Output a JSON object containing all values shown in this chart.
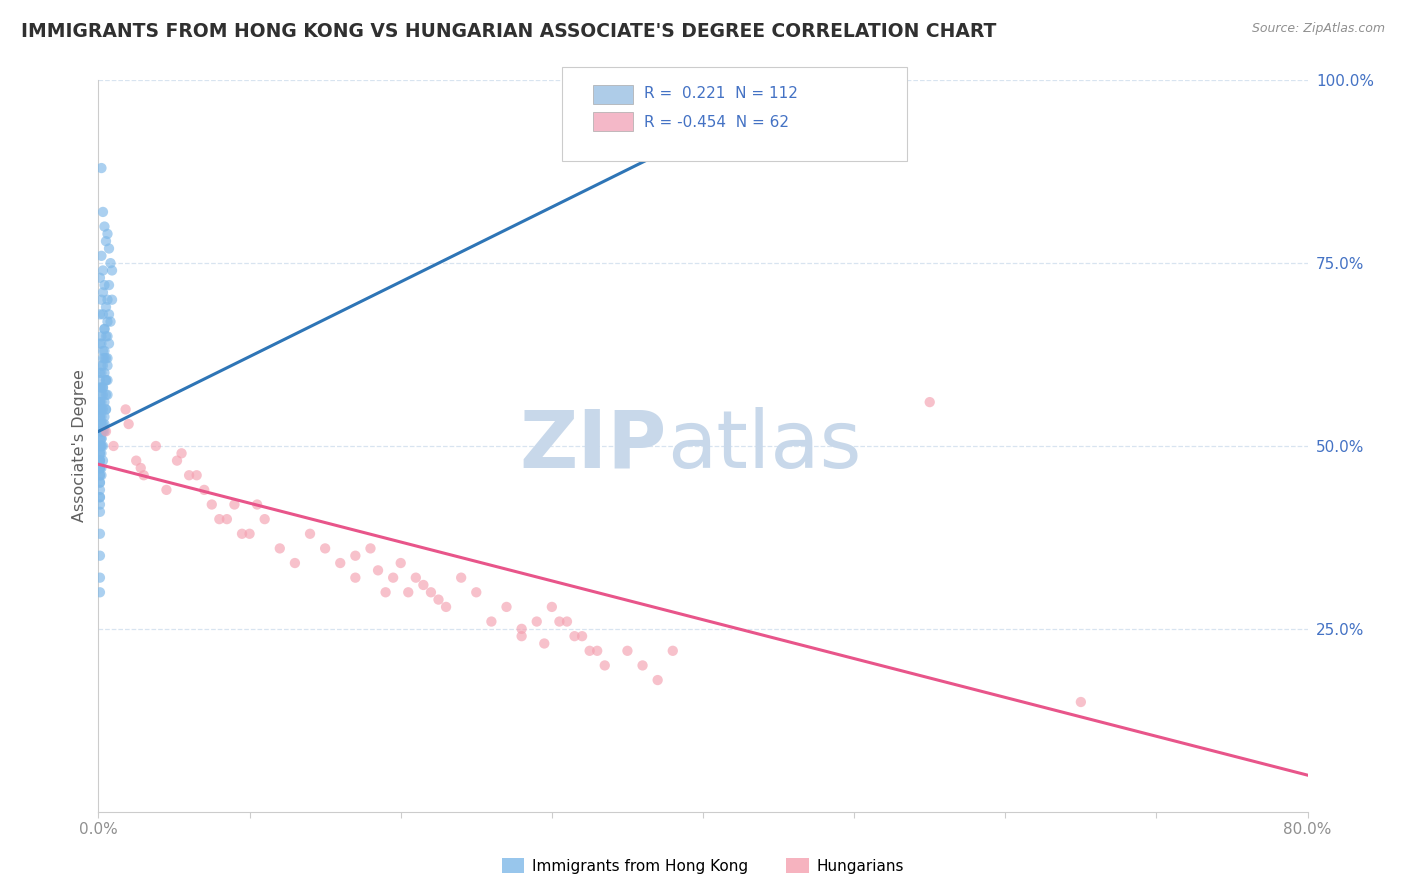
{
  "title": "IMMIGRANTS FROM HONG KONG VS HUNGARIAN ASSOCIATE'S DEGREE CORRELATION CHART",
  "source": "Source: ZipAtlas.com",
  "ylabel_label": "Associate's Degree",
  "xlim": [
    0.0,
    0.8
  ],
  "ylim": [
    0.0,
    1.0
  ],
  "series_hk": {
    "color": "#7eb8e8",
    "alpha": 0.65,
    "size": 55,
    "trend_color": "#2e75b6",
    "trend_lw": 2.2
  },
  "series_hu": {
    "color": "#f4a0b0",
    "alpha": 0.65,
    "size": 55,
    "trend_color": "#e8558a",
    "trend_lw": 2.2
  },
  "legend_hk_color": "#aecce8",
  "legend_hu_color": "#f4b8c8",
  "watermark_zip": "ZIP",
  "watermark_atlas": "atlas",
  "watermark_color_zip": "#c8d8ea",
  "watermark_color_atlas": "#c8d8ea",
  "background_color": "#ffffff",
  "title_color": "#303030",
  "title_fontsize": 13.5,
  "source_color": "#909090",
  "axis_label_color": "#606060",
  "tick_color": "#909090",
  "ytick_color": "#4472c4",
  "grid_color": "#d8e4f0",
  "grid_linestyle": "--",
  "hk_x": [
    0.002,
    0.004,
    0.003,
    0.005,
    0.002,
    0.006,
    0.003,
    0.007,
    0.004,
    0.008,
    0.001,
    0.003,
    0.002,
    0.005,
    0.003,
    0.007,
    0.004,
    0.006,
    0.002,
    0.009,
    0.001,
    0.004,
    0.002,
    0.006,
    0.003,
    0.005,
    0.004,
    0.007,
    0.002,
    0.009,
    0.001,
    0.003,
    0.002,
    0.004,
    0.001,
    0.005,
    0.003,
    0.006,
    0.002,
    0.008,
    0.001,
    0.003,
    0.002,
    0.004,
    0.001,
    0.005,
    0.003,
    0.006,
    0.002,
    0.007,
    0.001,
    0.002,
    0.001,
    0.003,
    0.002,
    0.004,
    0.001,
    0.005,
    0.002,
    0.006,
    0.001,
    0.002,
    0.001,
    0.003,
    0.001,
    0.004,
    0.002,
    0.005,
    0.001,
    0.006,
    0.001,
    0.002,
    0.001,
    0.003,
    0.001,
    0.004,
    0.002,
    0.005,
    0.001,
    0.006,
    0.001,
    0.002,
    0.001,
    0.002,
    0.001,
    0.003,
    0.001,
    0.004,
    0.002,
    0.005,
    0.001,
    0.001,
    0.001,
    0.002,
    0.001,
    0.003,
    0.001,
    0.002,
    0.001,
    0.003,
    0.001,
    0.001,
    0.001,
    0.002,
    0.001,
    0.001,
    0.001,
    0.001,
    0.001,
    0.001,
    0.001,
    0.001
  ],
  "hk_y": [
    0.88,
    0.8,
    0.82,
    0.78,
    0.76,
    0.79,
    0.74,
    0.77,
    0.72,
    0.75,
    0.73,
    0.71,
    0.7,
    0.69,
    0.68,
    0.72,
    0.66,
    0.7,
    0.65,
    0.74,
    0.68,
    0.66,
    0.64,
    0.67,
    0.63,
    0.65,
    0.62,
    0.68,
    0.61,
    0.7,
    0.64,
    0.62,
    0.6,
    0.63,
    0.59,
    0.62,
    0.61,
    0.65,
    0.58,
    0.67,
    0.6,
    0.58,
    0.57,
    0.6,
    0.56,
    0.59,
    0.58,
    0.62,
    0.55,
    0.64,
    0.58,
    0.56,
    0.54,
    0.57,
    0.53,
    0.56,
    0.55,
    0.59,
    0.52,
    0.61,
    0.56,
    0.54,
    0.52,
    0.55,
    0.51,
    0.54,
    0.53,
    0.57,
    0.5,
    0.59,
    0.55,
    0.52,
    0.5,
    0.53,
    0.49,
    0.52,
    0.51,
    0.55,
    0.48,
    0.57,
    0.54,
    0.5,
    0.48,
    0.51,
    0.47,
    0.5,
    0.49,
    0.53,
    0.46,
    0.55,
    0.5,
    0.48,
    0.46,
    0.49,
    0.44,
    0.48,
    0.46,
    0.5,
    0.43,
    0.52,
    0.47,
    0.45,
    0.43,
    0.47,
    0.41,
    0.45,
    0.42,
    0.47,
    0.3,
    0.32,
    0.38,
    0.35
  ],
  "hu_x": [
    0.005,
    0.01,
    0.018,
    0.025,
    0.03,
    0.038,
    0.045,
    0.052,
    0.02,
    0.028,
    0.06,
    0.07,
    0.08,
    0.09,
    0.1,
    0.11,
    0.055,
    0.065,
    0.075,
    0.085,
    0.095,
    0.105,
    0.12,
    0.13,
    0.14,
    0.15,
    0.16,
    0.17,
    0.18,
    0.19,
    0.2,
    0.21,
    0.22,
    0.23,
    0.24,
    0.25,
    0.17,
    0.185,
    0.195,
    0.205,
    0.215,
    0.225,
    0.26,
    0.27,
    0.28,
    0.29,
    0.3,
    0.31,
    0.32,
    0.33,
    0.28,
    0.295,
    0.305,
    0.315,
    0.325,
    0.335,
    0.35,
    0.36,
    0.37,
    0.38,
    0.55,
    0.65
  ],
  "hu_y": [
    0.52,
    0.5,
    0.55,
    0.48,
    0.46,
    0.5,
    0.44,
    0.48,
    0.53,
    0.47,
    0.46,
    0.44,
    0.4,
    0.42,
    0.38,
    0.4,
    0.49,
    0.46,
    0.42,
    0.4,
    0.38,
    0.42,
    0.36,
    0.34,
    0.38,
    0.36,
    0.34,
    0.32,
    0.36,
    0.3,
    0.34,
    0.32,
    0.3,
    0.28,
    0.32,
    0.3,
    0.35,
    0.33,
    0.32,
    0.3,
    0.31,
    0.29,
    0.26,
    0.28,
    0.24,
    0.26,
    0.28,
    0.26,
    0.24,
    0.22,
    0.25,
    0.23,
    0.26,
    0.24,
    0.22,
    0.2,
    0.22,
    0.2,
    0.18,
    0.22,
    0.56,
    0.15
  ],
  "hk_trend_x0": 0.0,
  "hk_trend_x1": 0.45,
  "hk_trend_y0": 0.52,
  "hk_trend_y1": 0.98,
  "hu_trend_x0": 0.0,
  "hu_trend_x1": 0.8,
  "hu_trend_y0": 0.475,
  "hu_trend_y1": 0.05
}
